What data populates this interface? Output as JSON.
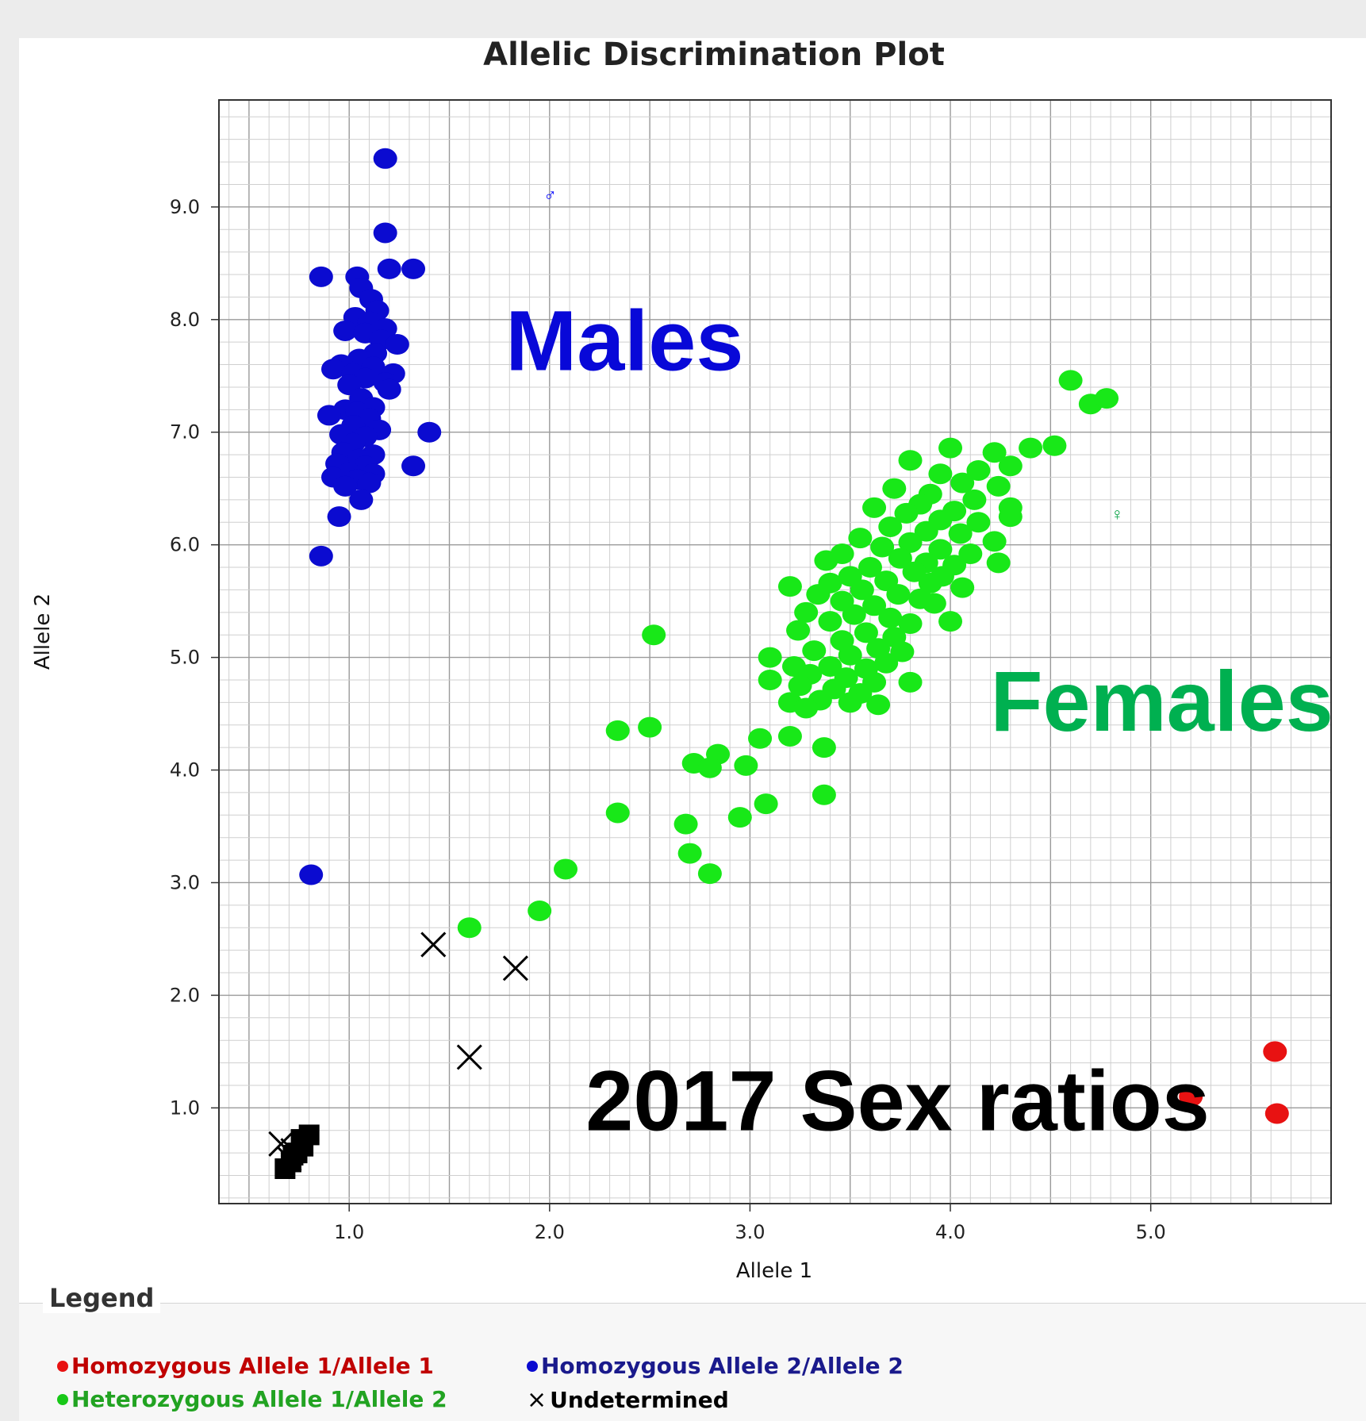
{
  "chart_data": {
    "type": "scatter",
    "title": "Allelic Discrimination Plot",
    "xlabel": "Allele 1",
    "ylabel": "Allele 2",
    "xlim": [
      0.35,
      5.9
    ],
    "ylim": [
      0.15,
      9.95
    ],
    "xticks": [
      "1.0",
      "2.0",
      "3.0",
      "4.0",
      "5.0"
    ],
    "yticks": [
      "1.0",
      "2.0",
      "3.0",
      "4.0",
      "5.0",
      "6.0",
      "7.0",
      "8.0",
      "9.0"
    ],
    "grid": true,
    "series": [
      {
        "name": "Homozygous Allele 1/Allele 1",
        "color": "#e81212",
        "marker": "circle",
        "points": [
          [
            5.2,
            1.1
          ],
          [
            5.62,
            1.5
          ],
          [
            5.63,
            0.95
          ]
        ]
      },
      {
        "name": "Homozygous Allele 2/Allele 2",
        "color": "#0b0bd0",
        "marker": "circle",
        "points": [
          [
            1.18,
            9.43
          ],
          [
            1.18,
            8.77
          ],
          [
            0.86,
            8.38
          ],
          [
            1.04,
            8.38
          ],
          [
            1.2,
            8.45
          ],
          [
            1.32,
            8.45
          ],
          [
            1.06,
            8.28
          ],
          [
            1.11,
            8.18
          ],
          [
            1.14,
            8.08
          ],
          [
            1.03,
            8.02
          ],
          [
            1.1,
            7.98
          ],
          [
            1.18,
            7.92
          ],
          [
            0.98,
            7.9
          ],
          [
            1.08,
            7.88
          ],
          [
            1.16,
            7.82
          ],
          [
            1.24,
            7.78
          ],
          [
            1.13,
            7.7
          ],
          [
            1.05,
            7.65
          ],
          [
            0.96,
            7.6
          ],
          [
            1.12,
            7.58
          ],
          [
            0.92,
            7.56
          ],
          [
            1.02,
            7.52
          ],
          [
            1.22,
            7.52
          ],
          [
            1.08,
            7.48
          ],
          [
            1.18,
            7.44
          ],
          [
            1.0,
            7.42
          ],
          [
            1.2,
            7.38
          ],
          [
            1.06,
            7.3
          ],
          [
            1.12,
            7.22
          ],
          [
            0.98,
            7.2
          ],
          [
            1.04,
            7.18
          ],
          [
            0.9,
            7.15
          ],
          [
            1.1,
            7.12
          ],
          [
            1.02,
            7.06
          ],
          [
            1.15,
            7.02
          ],
          [
            0.96,
            6.98
          ],
          [
            1.08,
            6.96
          ],
          [
            1.4,
            7.0
          ],
          [
            1.02,
            6.9
          ],
          [
            0.97,
            6.82
          ],
          [
            1.12,
            6.8
          ],
          [
            1.05,
            6.76
          ],
          [
            0.94,
            6.72
          ],
          [
            1.08,
            6.7
          ],
          [
            1.32,
            6.7
          ],
          [
            1.0,
            6.64
          ],
          [
            1.12,
            6.63
          ],
          [
            0.92,
            6.6
          ],
          [
            1.04,
            6.58
          ],
          [
            1.1,
            6.55
          ],
          [
            0.98,
            6.52
          ],
          [
            1.06,
            6.4
          ],
          [
            0.95,
            6.25
          ],
          [
            0.86,
            5.9
          ],
          [
            0.81,
            3.07
          ]
        ]
      },
      {
        "name": "Heterozygous Allele 1/Allele 2",
        "color": "#18e818",
        "marker": "circle",
        "points": [
          [
            4.6,
            7.46
          ],
          [
            4.7,
            7.25
          ],
          [
            4.78,
            7.3
          ],
          [
            4.52,
            6.88
          ],
          [
            4.4,
            6.86
          ],
          [
            4.22,
            6.82
          ],
          [
            4.0,
            6.86
          ],
          [
            3.8,
            6.75
          ],
          [
            4.3,
            6.7
          ],
          [
            4.14,
            6.66
          ],
          [
            3.95,
            6.63
          ],
          [
            4.06,
            6.55
          ],
          [
            4.24,
            6.52
          ],
          [
            3.72,
            6.5
          ],
          [
            3.9,
            6.45
          ],
          [
            4.12,
            6.4
          ],
          [
            3.85,
            6.36
          ],
          [
            4.02,
            6.3
          ],
          [
            4.3,
            6.33
          ],
          [
            3.62,
            6.33
          ],
          [
            3.78,
            6.28
          ],
          [
            3.95,
            6.22
          ],
          [
            4.14,
            6.2
          ],
          [
            4.3,
            6.25
          ],
          [
            3.7,
            6.16
          ],
          [
            3.88,
            6.12
          ],
          [
            4.05,
            6.1
          ],
          [
            3.55,
            6.06
          ],
          [
            3.8,
            6.02
          ],
          [
            4.22,
            6.03
          ],
          [
            3.66,
            5.98
          ],
          [
            3.95,
            5.96
          ],
          [
            4.1,
            5.92
          ],
          [
            3.46,
            5.92
          ],
          [
            3.75,
            5.88
          ],
          [
            3.88,
            5.84
          ],
          [
            4.02,
            5.82
          ],
          [
            3.38,
            5.86
          ],
          [
            3.6,
            5.8
          ],
          [
            4.24,
            5.84
          ],
          [
            3.82,
            5.76
          ],
          [
            3.96,
            5.72
          ],
          [
            3.5,
            5.72
          ],
          [
            3.68,
            5.68
          ],
          [
            3.4,
            5.66
          ],
          [
            3.9,
            5.66
          ],
          [
            4.06,
            5.62
          ],
          [
            3.2,
            5.63
          ],
          [
            3.56,
            5.6
          ],
          [
            3.74,
            5.56
          ],
          [
            3.85,
            5.52
          ],
          [
            3.34,
            5.56
          ],
          [
            3.46,
            5.5
          ],
          [
            3.62,
            5.46
          ],
          [
            3.92,
            5.48
          ],
          [
            3.28,
            5.4
          ],
          [
            3.52,
            5.38
          ],
          [
            3.7,
            5.35
          ],
          [
            3.8,
            5.3
          ],
          [
            3.4,
            5.32
          ],
          [
            4.0,
            5.32
          ],
          [
            3.24,
            5.24
          ],
          [
            3.58,
            5.22
          ],
          [
            3.72,
            5.18
          ],
          [
            3.46,
            5.15
          ],
          [
            3.64,
            5.08
          ],
          [
            3.32,
            5.06
          ],
          [
            3.5,
            5.02
          ],
          [
            3.76,
            5.05
          ],
          [
            3.1,
            5.0
          ],
          [
            3.22,
            4.92
          ],
          [
            3.4,
            4.92
          ],
          [
            3.58,
            4.9
          ],
          [
            3.68,
            4.95
          ],
          [
            3.3,
            4.85
          ],
          [
            3.48,
            4.82
          ],
          [
            3.62,
            4.78
          ],
          [
            3.1,
            4.8
          ],
          [
            3.25,
            4.75
          ],
          [
            3.42,
            4.72
          ],
          [
            3.8,
            4.78
          ],
          [
            3.55,
            4.68
          ],
          [
            3.35,
            4.62
          ],
          [
            3.2,
            4.6
          ],
          [
            3.5,
            4.6
          ],
          [
            3.64,
            4.58
          ],
          [
            3.28,
            4.55
          ],
          [
            2.52,
            5.2
          ],
          [
            2.34,
            4.35
          ],
          [
            2.5,
            4.38
          ],
          [
            3.05,
            4.28
          ],
          [
            3.2,
            4.3
          ],
          [
            3.37,
            4.2
          ],
          [
            2.84,
            4.14
          ],
          [
            2.72,
            4.06
          ],
          [
            2.8,
            4.02
          ],
          [
            2.98,
            4.04
          ],
          [
            2.34,
            3.62
          ],
          [
            3.37,
            3.78
          ],
          [
            3.08,
            3.7
          ],
          [
            2.95,
            3.58
          ],
          [
            2.68,
            3.52
          ],
          [
            2.7,
            3.26
          ],
          [
            2.8,
            3.08
          ],
          [
            2.08,
            3.12
          ],
          [
            1.95,
            2.75
          ],
          [
            1.6,
            2.6
          ]
        ]
      },
      {
        "name": "Undetermined",
        "color": "#000000",
        "marker": "x",
        "points": [
          [
            1.42,
            2.45
          ],
          [
            1.83,
            2.24
          ],
          [
            1.6,
            1.45
          ],
          [
            0.66,
            0.68
          ],
          [
            0.72,
            0.62
          ],
          [
            0.7,
            0.55
          ]
        ]
      },
      {
        "name": "",
        "color": "#000000",
        "marker": "square",
        "points": [
          [
            0.68,
            0.46
          ],
          [
            0.71,
            0.52
          ],
          [
            0.74,
            0.6
          ],
          [
            0.77,
            0.66
          ],
          [
            0.8,
            0.76
          ],
          [
            0.76,
            0.72
          ],
          [
            0.72,
            0.58
          ]
        ]
      }
    ],
    "annotations": [
      {
        "text": "Males",
        "x": 1.78,
        "y": 7.55,
        "color": "#0808d8"
      },
      {
        "text": "Females",
        "x": 4.2,
        "y": 4.35,
        "color": "#00b050"
      },
      {
        "text": "2017 Sex ratios",
        "x": 2.18,
        "y": 0.8,
        "color": "#000000"
      },
      {
        "text": "♂",
        "x": 1.97,
        "y": 9.05,
        "color": "#0000ff"
      },
      {
        "text": "♀",
        "x": 4.8,
        "y": 6.22,
        "color": "#00a040"
      }
    ]
  },
  "legend": {
    "title": "Legend",
    "items": [
      {
        "label": "Homozygous Allele 1/Allele 1",
        "color": "#c00000",
        "marker": "circle",
        "mark_color": "#e81212"
      },
      {
        "label": "Homozygous Allele 2/Allele 2",
        "color": "#1a1a8c",
        "marker": "circle",
        "mark_color": "#0b0bd0"
      },
      {
        "label": "Heterozygous Allele 1/Allele 2",
        "color": "#22a322",
        "marker": "circle",
        "mark_color": "#18c818"
      },
      {
        "label": "Undetermined",
        "color": "#000000",
        "marker": "x",
        "mark_color": "#000000"
      }
    ]
  }
}
